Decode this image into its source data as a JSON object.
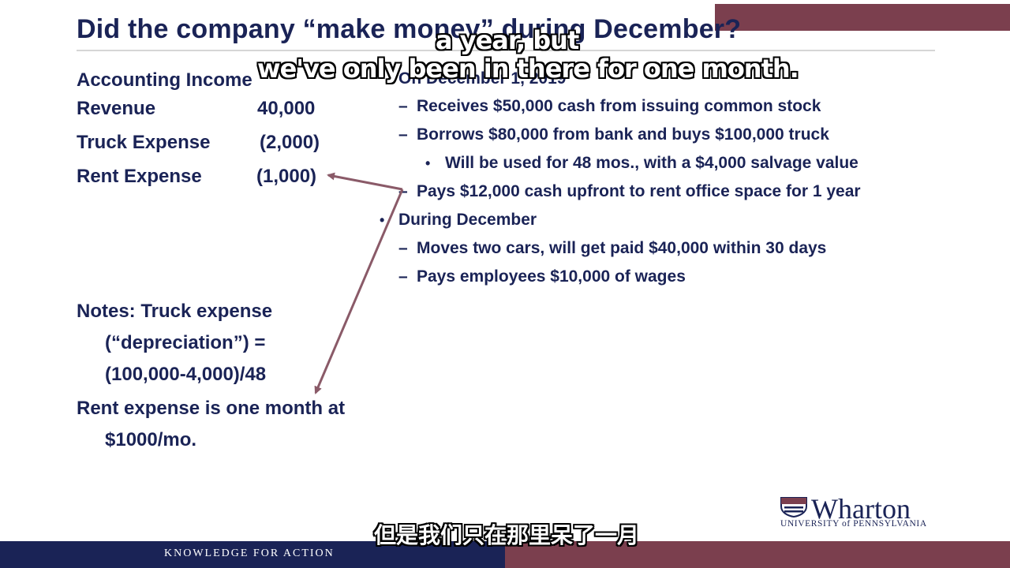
{
  "slide": {
    "title": "Did the company “make money” during December?",
    "left": {
      "heading": "Accounting Income",
      "rows": [
        {
          "label": "Revenue",
          "value": "40,000"
        },
        {
          "label": "Truck Expense",
          "value": "(2,000)"
        },
        {
          "label": "Rent Expense",
          "value": "(1,000)"
        }
      ],
      "notes": [
        "Notes: Truck expense",
        "(“depreciation”) =",
        "(100,000-4,000)/48",
        "Rent expense is one month at",
        "$1000/mo."
      ]
    },
    "right": {
      "heading1": "On December 1, 2019",
      "items1": [
        "Receives $50,000 cash from issuing common stock",
        "Borrows $80,000 from bank and buys $100,000 truck"
      ],
      "subitem": "Will be used for 48 mos., with a $4,000 salvage value",
      "item1_last": "Pays $12,000 cash upfront to rent office space for 1 year",
      "heading2": "During December",
      "items2": [
        "Moves two cars, will get paid $40,000 within 30 days",
        "Pays employees $10,000 of wages"
      ]
    },
    "dash_glyph": "–",
    "bullet_glyph": "•",
    "footer": {
      "tagline": "KNOWLEDGE FOR ACTION"
    },
    "logo": {
      "name": "Wharton",
      "subtitle": "UNIVERSITY of PENNSYLVANIA"
    }
  },
  "subtitles": {
    "english_line1": "a year, but",
    "english_line2": "we've only been in there for one month.",
    "chinese": "但是我们只在那里呆了一月"
  },
  "colors": {
    "navy": "#1a2356",
    "maroon": "#7b3f4e",
    "arrow": "#8a5a68"
  }
}
